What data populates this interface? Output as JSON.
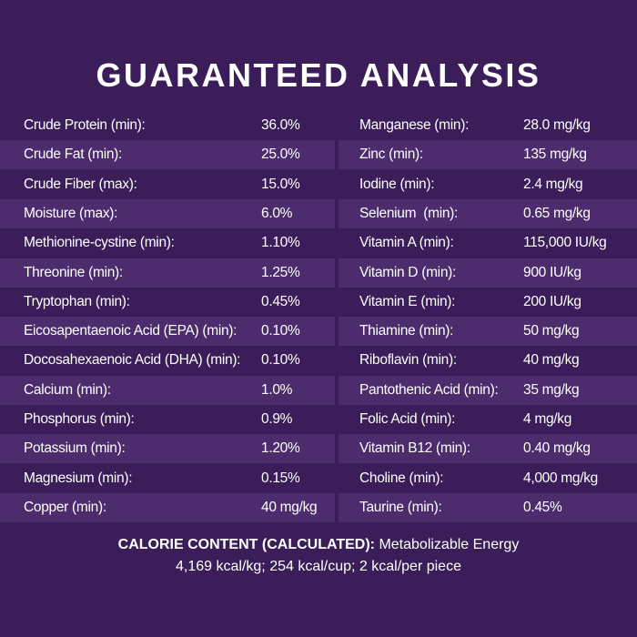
{
  "title": "GUARANTEED ANALYSIS",
  "left_table": {
    "rows": [
      [
        "Crude Protein (min):",
        "36.0%"
      ],
      [
        "Crude Fat (min):",
        "25.0%"
      ],
      [
        "Crude Fiber (max):",
        "15.0%"
      ],
      [
        "Moisture (max):",
        "6.0%"
      ],
      [
        "Methionine-cystine (min):",
        "1.10%"
      ],
      [
        "Threonine (min):",
        "1.25%"
      ],
      [
        "Tryptophan (min):",
        "0.45%"
      ],
      [
        "Eicosapentaenoic Acid (EPA) (min):",
        "0.10%"
      ],
      [
        "Docosahexaenoic Acid (DHA) (min):",
        "0.10%"
      ],
      [
        "Calcium (min):",
        "1.0%"
      ],
      [
        "Phosphorus (min):",
        "0.9%"
      ],
      [
        "Potassium (min):",
        "1.20%"
      ],
      [
        "Magnesium (min):",
        "0.15%"
      ],
      [
        "Copper (min):",
        "40 mg/kg"
      ]
    ]
  },
  "right_table": {
    "rows": [
      [
        "Manganese (min):",
        "28.0 mg/kg"
      ],
      [
        "Zinc (min):",
        "135 mg/kg"
      ],
      [
        "Iodine (min):",
        "2.4 mg/kg"
      ],
      [
        "Selenium  (min):",
        "0.65 mg/kg"
      ],
      [
        "Vitamin A (min):",
        "115,000 IU/kg"
      ],
      [
        "Vitamin D (min):",
        "900 IU/kg"
      ],
      [
        "Vitamin E (min):",
        "200 IU/kg"
      ],
      [
        "Thiamine (min):",
        "50 mg/kg"
      ],
      [
        "Riboflavin (min):",
        "40 mg/kg"
      ],
      [
        "Pantothenic Acid (min):",
        "35 mg/kg"
      ],
      [
        "Folic Acid (min):",
        "4 mg/kg"
      ],
      [
        "Vitamin B12 (min):",
        "0.40 mg/kg"
      ],
      [
        "Choline (min):",
        "4,000 mg/kg"
      ],
      [
        "Taurine (min):",
        "0.45%"
      ]
    ]
  },
  "calorie": {
    "heading": "CALORIE CONTENT (CALCULATED):",
    "line1": "Metabolizable Energy",
    "line2": "4,169 kcal/kg; 254 kcal/cup; 2 kcal/per piece"
  }
}
